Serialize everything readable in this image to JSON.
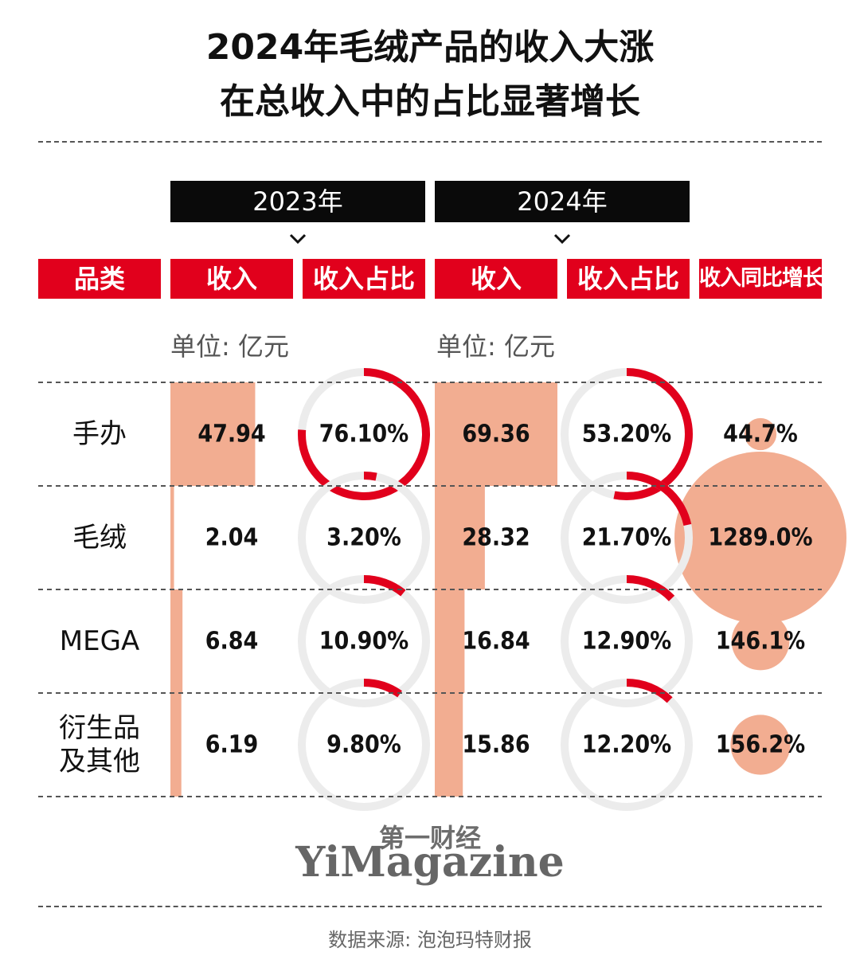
{
  "title_line1": "2024年毛绒产品的收入大涨",
  "title_line2": "在总收入中的占比显著增长",
  "year_labels": [
    "2023年",
    "2024年"
  ],
  "headers": {
    "category": "品类",
    "revenue_2023": "收入",
    "share_2023": "收入占比",
    "revenue_2024": "收入",
    "share_2024": "收入占比",
    "growth": "收入同比增长"
  },
  "unit_label": "单位: 亿元",
  "watermark_cn": "第一财经",
  "watermark_en": "YiMagazine",
  "source": "数据来源: 泡泡玛特财报",
  "colors": {
    "accent_red": "#e1001c",
    "bar_salmon": "#f2ad91",
    "ring_gray": "#ececec",
    "header_black": "#0a0a0a"
  },
  "chart_data": {
    "type": "table",
    "unit": "亿元",
    "rows": [
      {
        "category": "手办",
        "label_lines": [
          "手办"
        ],
        "revenue_2023": 47.94,
        "revenue_2023_text": "47.94",
        "share_2023": 76.1,
        "share_2023_text": "76.10%",
        "revenue_2024": 69.36,
        "revenue_2024_text": "69.36",
        "share_2024": 53.2,
        "share_2024_text": "53.20%",
        "growth": 44.7,
        "growth_text": "44.7%"
      },
      {
        "category": "毛绒",
        "label_lines": [
          "毛绒"
        ],
        "revenue_2023": 2.04,
        "revenue_2023_text": "2.04",
        "share_2023": 3.2,
        "share_2023_text": "3.20%",
        "revenue_2024": 28.32,
        "revenue_2024_text": "28.32",
        "share_2024": 21.7,
        "share_2024_text": "21.70%",
        "growth": 1289.0,
        "growth_text": "1289.0%"
      },
      {
        "category": "MEGA",
        "label_lines": [
          "MEGA"
        ],
        "revenue_2023": 6.84,
        "revenue_2023_text": "6.84",
        "share_2023": 10.9,
        "share_2023_text": "10.90%",
        "revenue_2024": 16.84,
        "revenue_2024_text": "16.84",
        "share_2024": 12.9,
        "share_2024_text": "12.90%",
        "growth": 146.1,
        "growth_text": "146.1%"
      },
      {
        "category": "衍生品及其他",
        "label_lines": [
          "衍生品",
          "及其他"
        ],
        "revenue_2023": 6.19,
        "revenue_2023_text": "6.19",
        "share_2023": 9.8,
        "share_2023_text": "9.80%",
        "revenue_2024": 15.86,
        "revenue_2024_text": "15.86",
        "share_2024": 12.2,
        "share_2024_text": "12.20%",
        "growth": 156.2,
        "growth_text": "156.2%"
      }
    ]
  }
}
